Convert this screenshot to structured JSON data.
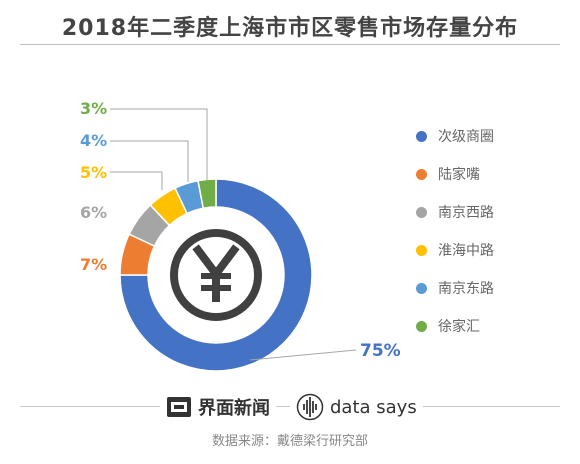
{
  "chart_data": {
    "type": "pie",
    "style": "donut",
    "title": "2018年二季度上海市市区零售市场存量分布",
    "categories": [
      "次级商圈",
      "陆家嘴",
      "南京西路",
      "淮海中路",
      "南京东路",
      "徐家汇"
    ],
    "values": [
      75,
      7,
      6,
      5,
      4,
      3
    ],
    "value_labels": [
      "75%",
      "7%",
      "6%",
      "5%",
      "4%",
      "3%"
    ],
    "colors": [
      "#4472c4",
      "#ed7d31",
      "#a5a5a5",
      "#ffc000",
      "#5b9bd5",
      "#70ad47"
    ],
    "legend_position": "right",
    "center_icon": "yuan-icon"
  },
  "footer": {
    "brand1": "界面新闻",
    "brand1_icon": "jiemian-logo-icon",
    "brand2": "data says",
    "brand2_icon": "waveform-logo-icon",
    "source": "数据来源：戴德梁行研究部"
  }
}
